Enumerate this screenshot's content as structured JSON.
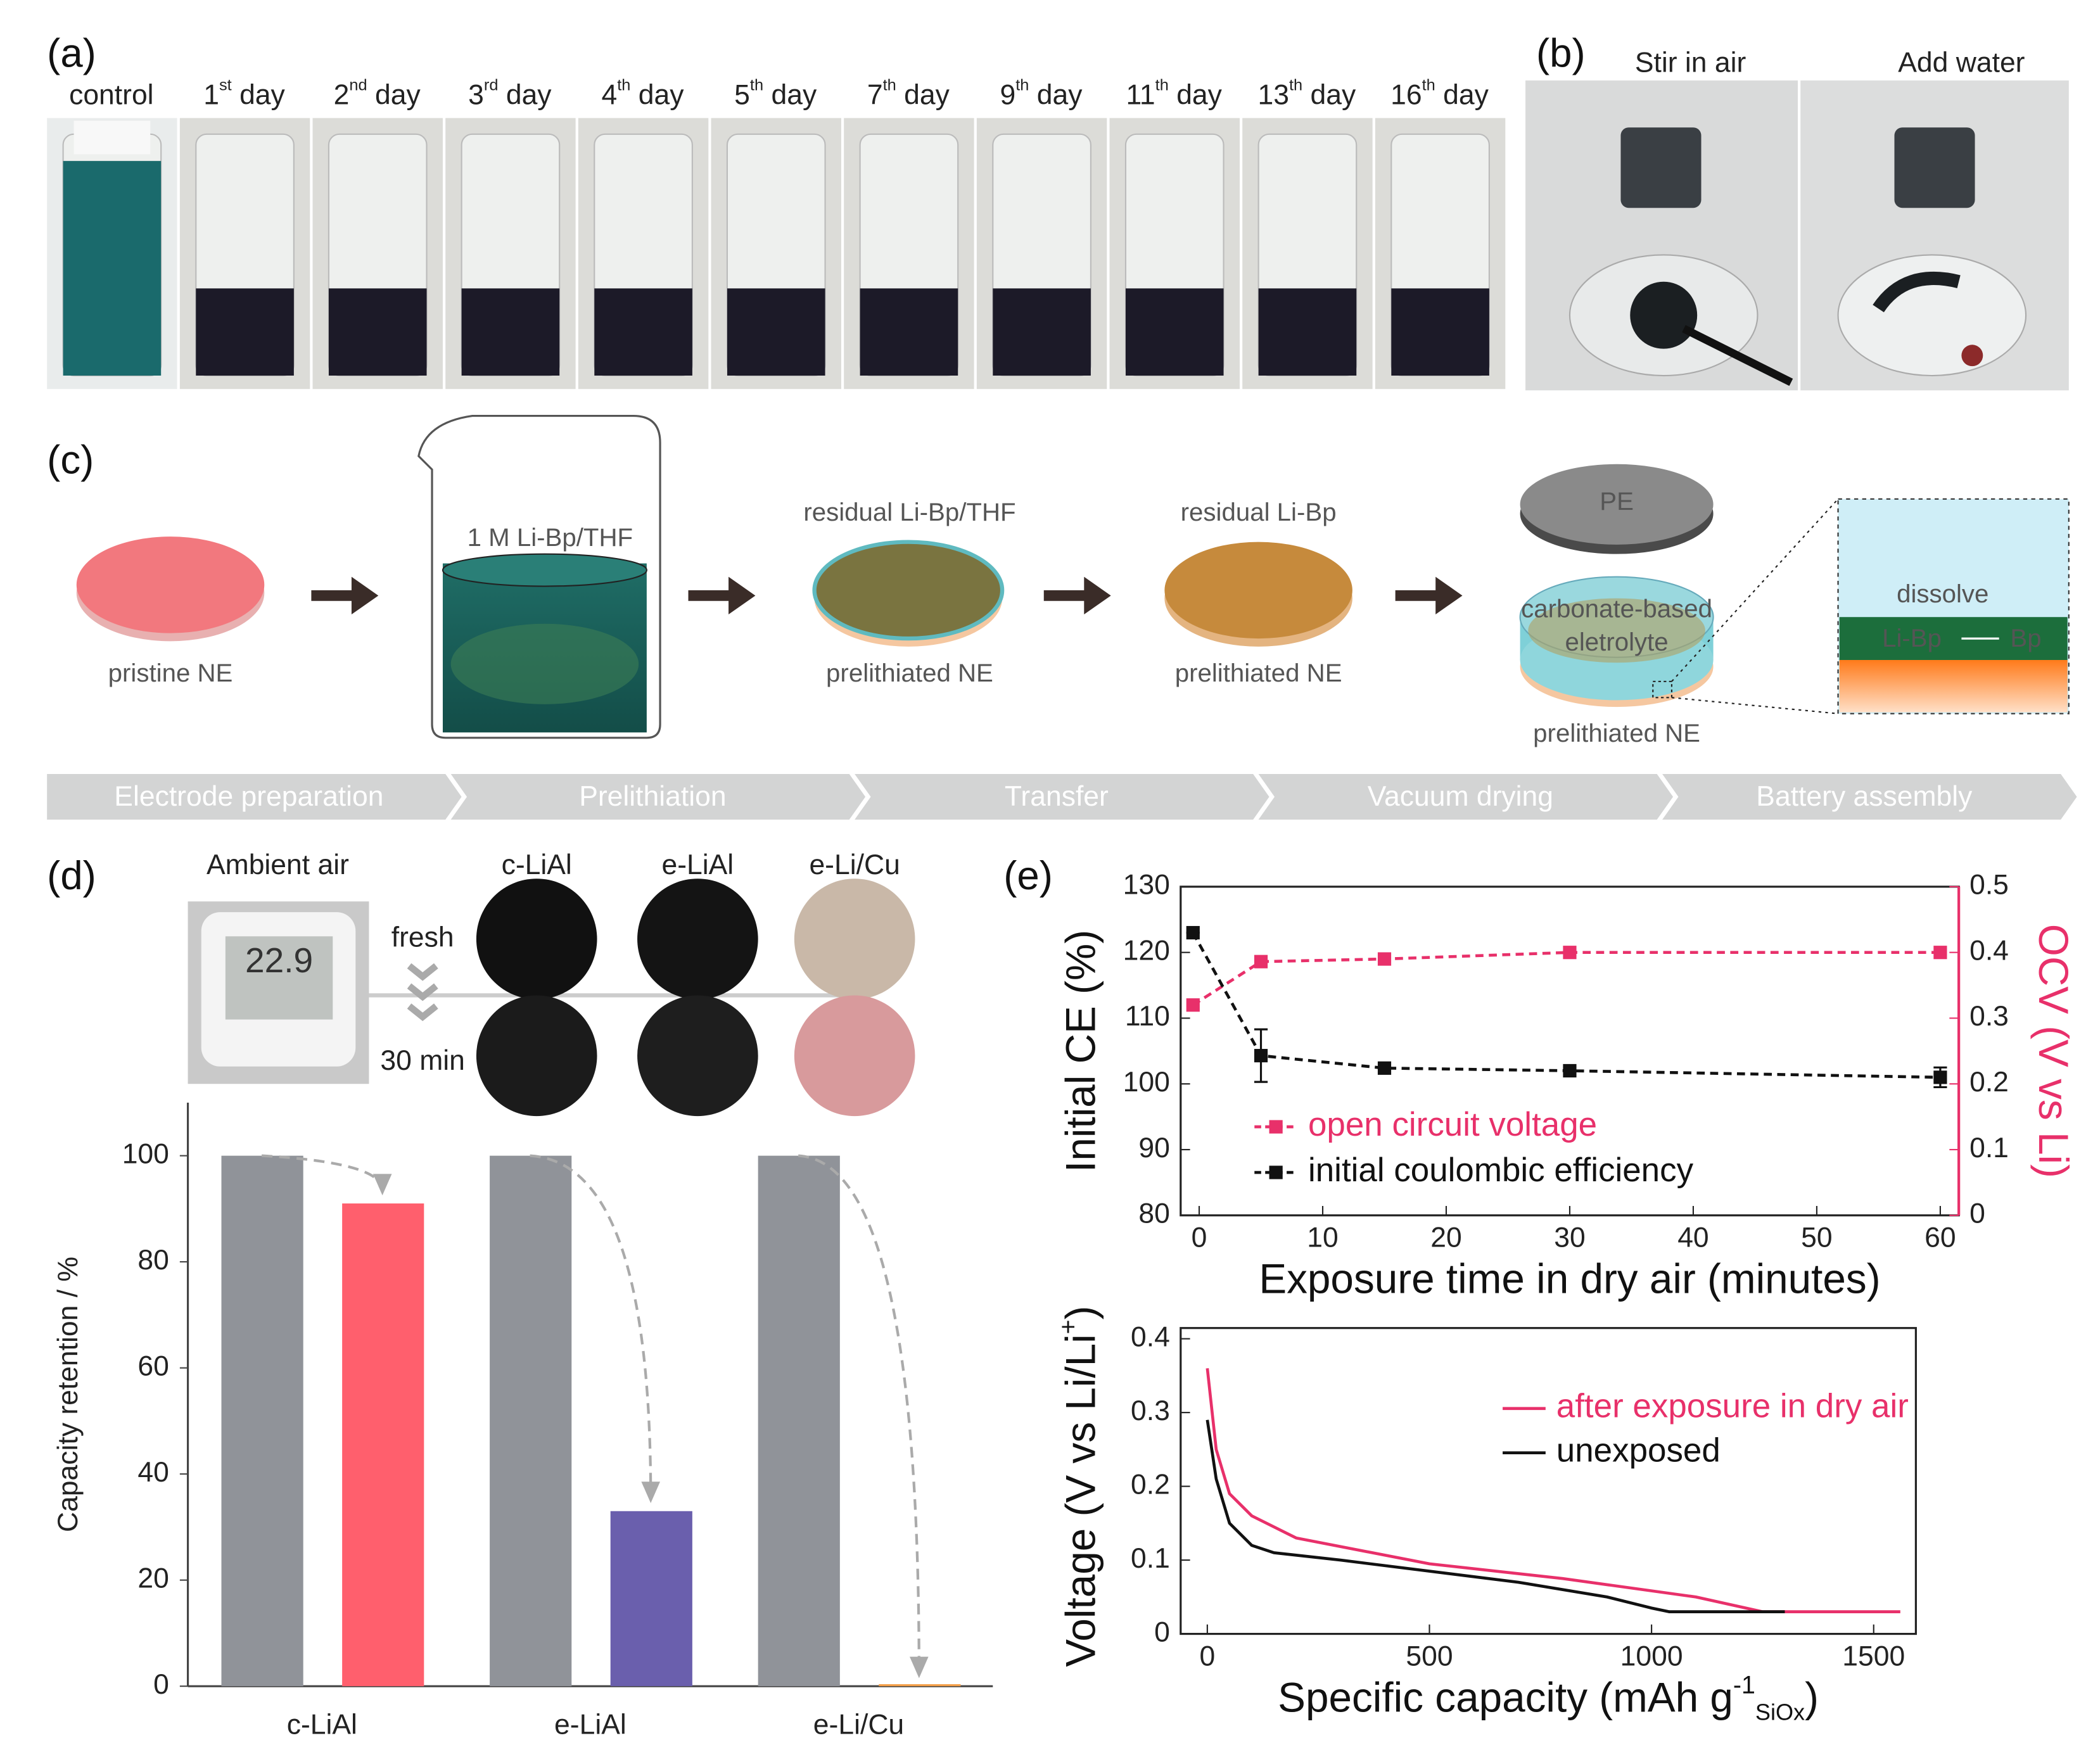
{
  "panel_labels": [
    "(a)",
    "(b)",
    "(c)",
    "(d)",
    "(e)"
  ],
  "panel_a": {
    "labels": [
      {
        "text": "control"
      },
      {
        "text": "1",
        "sup": "st",
        "rest": " day"
      },
      {
        "text": "2",
        "sup": "nd",
        "rest": " day"
      },
      {
        "text": "3",
        "sup": "rd",
        "rest": " day"
      },
      {
        "text": "4",
        "sup": "th",
        "rest": " day"
      },
      {
        "text": "5",
        "sup": "th",
        "rest": " day"
      },
      {
        "text": "7",
        "sup": "th",
        "rest": " day"
      },
      {
        "text": "9",
        "sup": "th",
        "rest": " day"
      },
      {
        "text": "11",
        "sup": "th",
        "rest": " day"
      },
      {
        "text": "13",
        "sup": "th",
        "rest": " day"
      },
      {
        "text": "16",
        "sup": "th",
        "rest": " day"
      }
    ]
  },
  "panel_b": {
    "labels": [
      "Stir in air",
      "Add water"
    ]
  },
  "panel_c": {
    "pristine": "pristine NE",
    "solution": "1 M Li-Bp/THF",
    "residual_thf": "residual Li-Bp/THF",
    "prelithiated_1": "prelithiated NE",
    "residual": "residual Li-Bp",
    "prelithiated_2": "prelithiated NE",
    "pe": "PE",
    "electrolyte_1": "carbonate-based",
    "electrolyte_2": "eletrolyte",
    "prelithiated_3": "prelithiated NE",
    "dissolve": "dissolve",
    "libp": "Li-Bp",
    "bp": "Bp",
    "steps": [
      "Electrode preparation",
      "Prelithiation",
      "Transfer",
      "Vacuum drying",
      "Battery assembly"
    ]
  },
  "panel_d": {
    "ambient": "Ambient air",
    "display": "22.9"
  },
  "chart_data": [
    {
      "type": "bar",
      "ylabel": "Capacity retention / %",
      "categories": [
        "c-LiAl",
        "e-LiAl",
        "e-Li/Cu"
      ],
      "series": [
        {
          "name": "fresh",
          "color": "#909399",
          "values": [
            100,
            100,
            100
          ]
        },
        {
          "name": "30 min",
          "colors": [
            "#ff5f6d",
            "#6a5fad",
            "#f5a04a"
          ],
          "values": [
            91,
            33,
            0
          ]
        }
      ],
      "ylim": [
        0,
        110
      ],
      "yticks": [
        0,
        20,
        40,
        60,
        80,
        100
      ]
    },
    {
      "type": "line",
      "xlabel": "Exposure time in dry air (minutes)",
      "ylabel": "Initial CE (%)",
      "y2label": "OCV (V vs Li)",
      "x": [
        -0.5,
        5,
        15,
        30,
        60
      ],
      "series": [
        {
          "name": "open circuit voltage",
          "color": "#e8306a",
          "axis": "y2",
          "values": [
            0.32,
            0.386,
            0.39,
            0.4,
            0.4
          ]
        },
        {
          "name": "initial coulombic efficiency",
          "color": "#111111",
          "values": [
            123,
            104.3,
            102.4,
            102,
            101
          ],
          "errors": [
            0,
            4,
            0,
            0,
            1.5
          ]
        }
      ],
      "markers": true,
      "dashed": true,
      "xlim": [
        -1.5,
        61.5
      ],
      "xticks": [
        0,
        10,
        20,
        30,
        40,
        50,
        60
      ],
      "ylim": [
        80,
        130
      ],
      "yticks": [
        80,
        90,
        100,
        110,
        120,
        130
      ],
      "y2lim": [
        0,
        0.5
      ],
      "y2ticks": [
        0,
        0.1,
        0.2,
        0.3,
        0.4,
        0.5
      ]
    },
    {
      "type": "line",
      "xlabel": "Specific capacity (mAh g",
      "xlabel_sup": "-1",
      "xlabel_sub": "SiOx",
      "xlabel_end": ")",
      "ylabel": "Voltage (V vs Li/Li",
      "ylabel_sup": "+",
      "ylabel_end": ")",
      "series": [
        {
          "name": "after exposure in dry air",
          "color": "#e8306a",
          "x": [
            0,
            20,
            50,
            100,
            200,
            500,
            800,
            1100,
            1250,
            1560
          ],
          "values": [
            0.36,
            0.25,
            0.19,
            0.16,
            0.13,
            0.095,
            0.075,
            0.05,
            0.03,
            0.03
          ]
        },
        {
          "name": "unexposed",
          "color": "#111111",
          "x": [
            0,
            20,
            50,
            100,
            150,
            300,
            500,
            700,
            900,
            1000,
            1040,
            1300
          ],
          "values": [
            0.29,
            0.21,
            0.15,
            0.12,
            0.11,
            0.1,
            0.085,
            0.07,
            0.05,
            0.035,
            0.03,
            0.03
          ]
        }
      ],
      "xlim": [
        -60,
        1595
      ],
      "xticks": [
        0,
        500,
        1000,
        1500
      ],
      "ylim": [
        0,
        0.4
      ],
      "yticks": [
        0,
        0.1,
        0.2,
        0.3,
        0.4
      ]
    }
  ]
}
